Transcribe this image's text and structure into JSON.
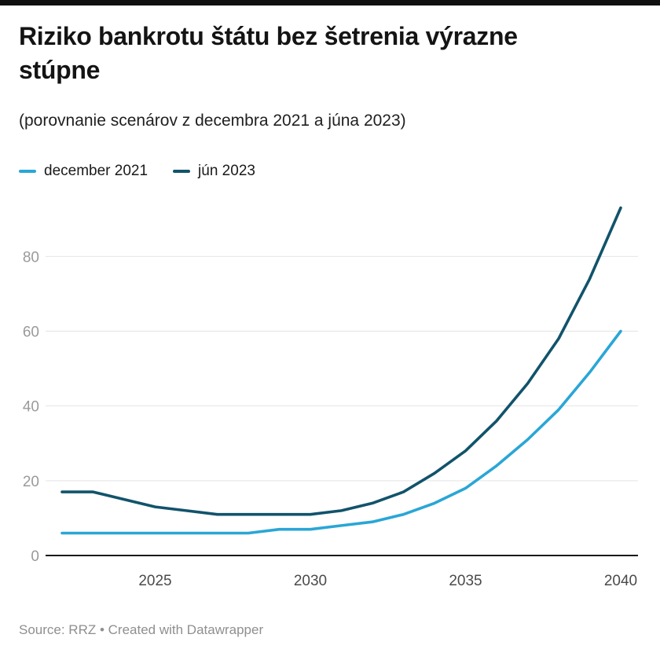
{
  "header": {
    "title": "Riziko bankrotu štátu bez šetrenia výrazne stúpne",
    "subtitle": "(porovnanie scenárov z decembra 2021 a júna 2023)"
  },
  "legend": [
    {
      "label": "december 2021",
      "color": "#2aa6d6"
    },
    {
      "label": "jún 2023",
      "color": "#11536b"
    }
  ],
  "chart_data": {
    "type": "line",
    "title": "Riziko bankrotu štátu bez šetrenia výrazne stúpne",
    "subtitle": "(porovnanie scenárov z decembra 2021 a júna 2023)",
    "x": [
      2022,
      2023,
      2024,
      2025,
      2026,
      2027,
      2028,
      2029,
      2030,
      2031,
      2032,
      2033,
      2034,
      2035,
      2036,
      2037,
      2038,
      2039,
      2040
    ],
    "series": [
      {
        "name": "december 2021",
        "color": "#2aa6d6",
        "values": [
          6,
          6,
          6,
          6,
          6,
          6,
          6,
          7,
          7,
          8,
          9,
          11,
          14,
          18,
          24,
          31,
          39,
          49,
          60
        ]
      },
      {
        "name": "jún 2023",
        "color": "#11536b",
        "values": [
          17,
          17,
          15,
          13,
          12,
          11,
          11,
          11,
          11,
          12,
          14,
          17,
          22,
          28,
          36,
          46,
          58,
          74,
          93
        ]
      }
    ],
    "xticks": [
      2025,
      2030,
      2035,
      2040
    ],
    "yticks": [
      0,
      20,
      40,
      60,
      80
    ],
    "xlim": [
      2022,
      2040
    ],
    "ylim": [
      0,
      95
    ],
    "grid": true,
    "legend_position": "top",
    "xlabel": "",
    "ylabel": ""
  },
  "footer": {
    "source": "Source: RRZ • Created with Datawrapper"
  }
}
